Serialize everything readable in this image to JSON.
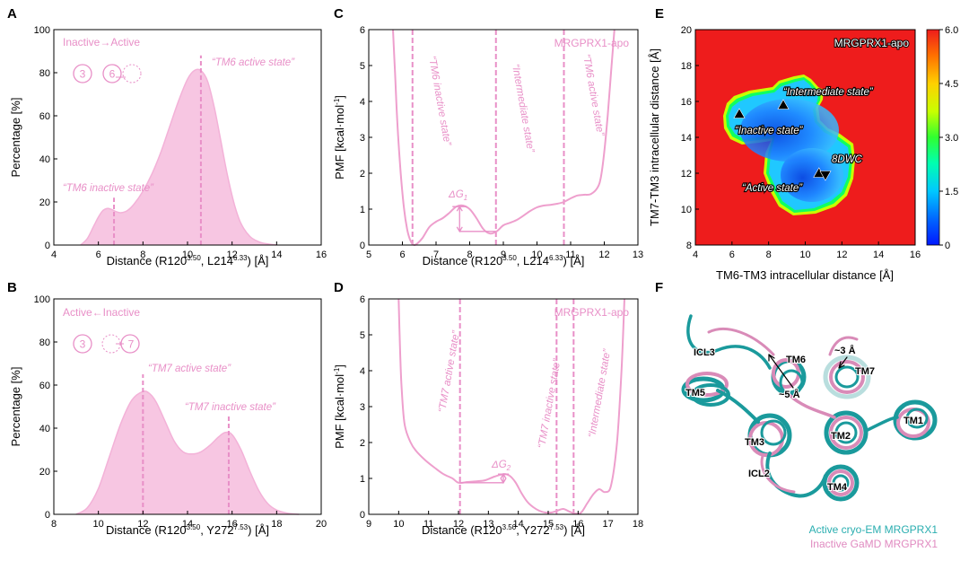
{
  "panels": {
    "A": {
      "letter": "A",
      "legend": "Inactive→Active",
      "circles": [
        "3",
        "6"
      ],
      "xlabel_pre": "Distance (R120",
      "xlabel_sup1": "3.50",
      "xlabel_mid": ", L214",
      "xlabel_sup2": "6.33",
      "xlabel_post": ") [Å]",
      "ylabel": "Percentage  [%]",
      "annotations": [
        "“TM6 inactive state”",
        "“TM6 active state”"
      ]
    },
    "B": {
      "letter": "B",
      "legend": "Active←Inactive",
      "circles": [
        "3",
        "7"
      ],
      "xlabel_pre": "Distance (R120",
      "xlabel_sup1": "3.50",
      "xlabel_mid": ", Y272",
      "xlabel_sup2": "7.53",
      "xlabel_post": ") [Å]",
      "ylabel": "Percentage  [%]",
      "annotations": [
        "“TM7 active state”",
        "“TM7 inactive state”"
      ]
    },
    "C": {
      "letter": "C",
      "label": "MRGPRX1-apo",
      "xlabel_pre": "Distance (R120",
      "xlabel_sup1": "3.50",
      "xlabel_mid": ", L214",
      "xlabel_sup2": "6.33",
      "xlabel_post": ") [Å]",
      "ylabel_pre": "PMF [kcal·mol",
      "ylabel_sup": "-1",
      "ylabel_post": "]",
      "dg": "ΔG",
      "dg_sub": "1",
      "annotations": [
        "“TM6 inactive state”",
        "“Intermediate state”",
        "“TM6 active state”"
      ]
    },
    "D": {
      "letter": "D",
      "label": "MRGPRX1-apo",
      "xlabel_pre": "Distance (R120",
      "xlabel_sup1": "3.50",
      "xlabel_mid": ", Y272",
      "xlabel_sup2": "7.53",
      "xlabel_post": ") [Å]",
      "ylabel_pre": "PMF [kcal·mol",
      "ylabel_sup": "-1",
      "ylabel_post": "]",
      "dg": "ΔG",
      "dg_sub": "2",
      "annotations": [
        "“TM7 active state”",
        "“TM7 inactive state”",
        "“Intermediate state”"
      ]
    },
    "E": {
      "letter": "E",
      "label": "MRGPRX1-apo",
      "xlabel": "TM6-TM3 intracellular distance [Å]",
      "ylabel": "TM7-TM3 intracellular distance [Å]",
      "annotations": [
        "“Intermediate state”",
        "“Inactive state”",
        "“Active state”",
        "8DWC"
      ]
    },
    "F": {
      "letter": "F",
      "tm_labels": [
        "ICL3",
        "TM6",
        "TM7",
        "TM5",
        "TM3",
        "TM2",
        "TM1",
        "ICL2",
        "TM4"
      ],
      "distances": [
        "~3 Å",
        "~5 Å"
      ],
      "legend": [
        "Active cryo-EM MRGPRX1",
        "Inactive GaMD MRGPRX1"
      ],
      "legend_colors": [
        "#2aaeb0",
        "#e08ac0"
      ]
    }
  },
  "colors": {
    "pink": "#e88fc7",
    "teal": "#1a9a9c",
    "pinkstruct": "#d98bb8",
    "heat_bg": "#ee1c1c"
  },
  "chart_data": [
    {
      "type": "area",
      "panel": "A",
      "xlim": [
        4,
        16
      ],
      "ylim": [
        0,
        100
      ],
      "xticks": [
        4,
        6,
        8,
        10,
        12,
        14,
        16
      ],
      "yticks": [
        0,
        20,
        40,
        60,
        80,
        100
      ],
      "x": [
        5.2,
        5.5,
        5.8,
        6.0,
        6.2,
        6.4,
        6.6,
        6.8,
        7.0,
        7.3,
        7.6,
        8.0,
        8.4,
        8.8,
        9.2,
        9.6,
        10.0,
        10.3,
        10.6,
        10.9,
        11.2,
        11.5,
        11.8,
        12.1,
        12.4,
        12.8,
        13.2,
        13.6,
        14.0
      ],
      "y": [
        0,
        3,
        9,
        13,
        16,
        17,
        16.5,
        15.5,
        15,
        16,
        19,
        25,
        33,
        43,
        55,
        67,
        77,
        81,
        81,
        76,
        64,
        48,
        32,
        19,
        10,
        4,
        1.5,
        0.5,
        0
      ],
      "markers": [
        {
          "x": 6.7,
          "y": 22
        },
        {
          "x": 10.6,
          "y": 88
        }
      ]
    },
    {
      "type": "area",
      "panel": "B",
      "xlim": [
        8,
        20
      ],
      "ylim": [
        0,
        100
      ],
      "xticks": [
        8,
        10,
        12,
        14,
        16,
        18,
        20
      ],
      "yticks": [
        0,
        20,
        40,
        60,
        80,
        100
      ],
      "x": [
        9.0,
        9.5,
        10.0,
        10.5,
        11.0,
        11.5,
        12.0,
        12.3,
        12.6,
        13.0,
        13.4,
        13.8,
        14.2,
        14.6,
        15.0,
        15.4,
        15.7,
        16.0,
        16.4,
        16.8,
        17.2,
        17.6,
        18.0,
        18.5,
        19.0
      ],
      "y": [
        0,
        3,
        12,
        27,
        42,
        53,
        57,
        56,
        52,
        43,
        34,
        29,
        28,
        29,
        32,
        36,
        38,
        37,
        30,
        20,
        11,
        5,
        2,
        0.5,
        0
      ],
      "markers": [
        {
          "x": 12.0,
          "y": 65
        },
        {
          "x": 15.85,
          "y": 46
        }
      ]
    },
    {
      "type": "line",
      "panel": "C",
      "xlim": [
        5,
        13
      ],
      "ylim": [
        0,
        6
      ],
      "xticks": [
        5,
        6,
        7,
        8,
        9,
        10,
        11,
        12,
        13
      ],
      "yticks": [
        0,
        1,
        2,
        3,
        4,
        5,
        6
      ],
      "x": [
        5.72,
        5.78,
        5.85,
        5.95,
        6.05,
        6.15,
        6.25,
        6.35,
        6.45,
        6.6,
        6.8,
        7.0,
        7.2,
        7.4,
        7.6,
        7.8,
        8.0,
        8.2,
        8.4,
        8.6,
        8.8,
        9.0,
        9.2,
        9.4,
        9.6,
        9.8,
        10.0,
        10.2,
        10.4,
        10.6,
        10.8,
        11.0,
        11.2,
        11.4,
        11.6,
        11.8,
        11.9,
        12.0,
        12.1,
        12.2,
        12.3
      ],
      "y": [
        6,
        4.8,
        3.4,
        2.0,
        1.0,
        0.4,
        0.1,
        0.0,
        0.05,
        0.2,
        0.5,
        0.65,
        0.75,
        0.9,
        1.07,
        1.1,
        1.0,
        0.75,
        0.45,
        0.32,
        0.38,
        0.55,
        0.62,
        0.7,
        0.82,
        0.95,
        1.05,
        1.1,
        1.12,
        1.15,
        1.2,
        1.3,
        1.38,
        1.4,
        1.42,
        1.6,
        1.9,
        2.6,
        3.6,
        4.8,
        6
      ],
      "vlines": [
        6.3,
        8.78,
        10.8
      ],
      "dg": {
        "x": 7.7,
        "y0": 0.38,
        "y1": 1.07,
        "x_end": 8.78
      }
    },
    {
      "type": "line",
      "panel": "D",
      "xlim": [
        9,
        18
      ],
      "ylim": [
        0,
        6
      ],
      "xticks": [
        9,
        10,
        11,
        12,
        13,
        14,
        15,
        16,
        17,
        18
      ],
      "yticks": [
        0,
        1,
        2,
        3,
        4,
        5,
        6
      ],
      "x": [
        10.0,
        10.05,
        10.1,
        10.2,
        10.4,
        10.6,
        10.9,
        11.2,
        11.5,
        11.8,
        12.0,
        12.3,
        12.6,
        12.9,
        13.2,
        13.5,
        13.7,
        13.9,
        14.1,
        14.3,
        14.5,
        14.7,
        14.9,
        15.1,
        15.3,
        15.5,
        15.7,
        15.9,
        16.1,
        16.3,
        16.5,
        16.7,
        16.9,
        17.1,
        17.3,
        17.45,
        17.55
      ],
      "y": [
        6,
        4.5,
        3.5,
        2.5,
        2.0,
        1.75,
        1.5,
        1.3,
        1.12,
        1.0,
        0.88,
        0.9,
        0.92,
        0.95,
        1.05,
        1.12,
        1.08,
        0.9,
        0.6,
        0.35,
        0.2,
        0.1,
        0.05,
        0.05,
        0.1,
        0.15,
        0.08,
        0.02,
        0.05,
        0.3,
        0.55,
        0.7,
        0.62,
        0.8,
        2.0,
        4.0,
        6
      ],
      "vlines": [
        12.05,
        15.28,
        15.85
      ],
      "dg": {
        "x": 13.5,
        "y0": 0.88,
        "y1": 1.12,
        "x_start": 12.05
      }
    },
    {
      "type": "heatmap",
      "panel": "E",
      "xlim": [
        4,
        16
      ],
      "ylim": [
        8,
        20
      ],
      "xticks": [
        4,
        6,
        8,
        10,
        12,
        14,
        16
      ],
      "yticks": [
        8,
        10,
        12,
        14,
        16,
        18,
        20
      ],
      "colorbar": {
        "min": 0.0,
        "max": 6.0,
        "ticks": [
          "0",
          "1.5",
          "3.0",
          "4.5",
          "6.0"
        ]
      },
      "markers": [
        {
          "x": 6.4,
          "y": 15.3,
          "dir": "up"
        },
        {
          "x": 8.8,
          "y": 15.8,
          "dir": "up"
        },
        {
          "x": 10.75,
          "y": 12.0,
          "dir": "up"
        },
        {
          "x": 11.1,
          "y": 11.9,
          "dir": "down"
        }
      ]
    }
  ]
}
